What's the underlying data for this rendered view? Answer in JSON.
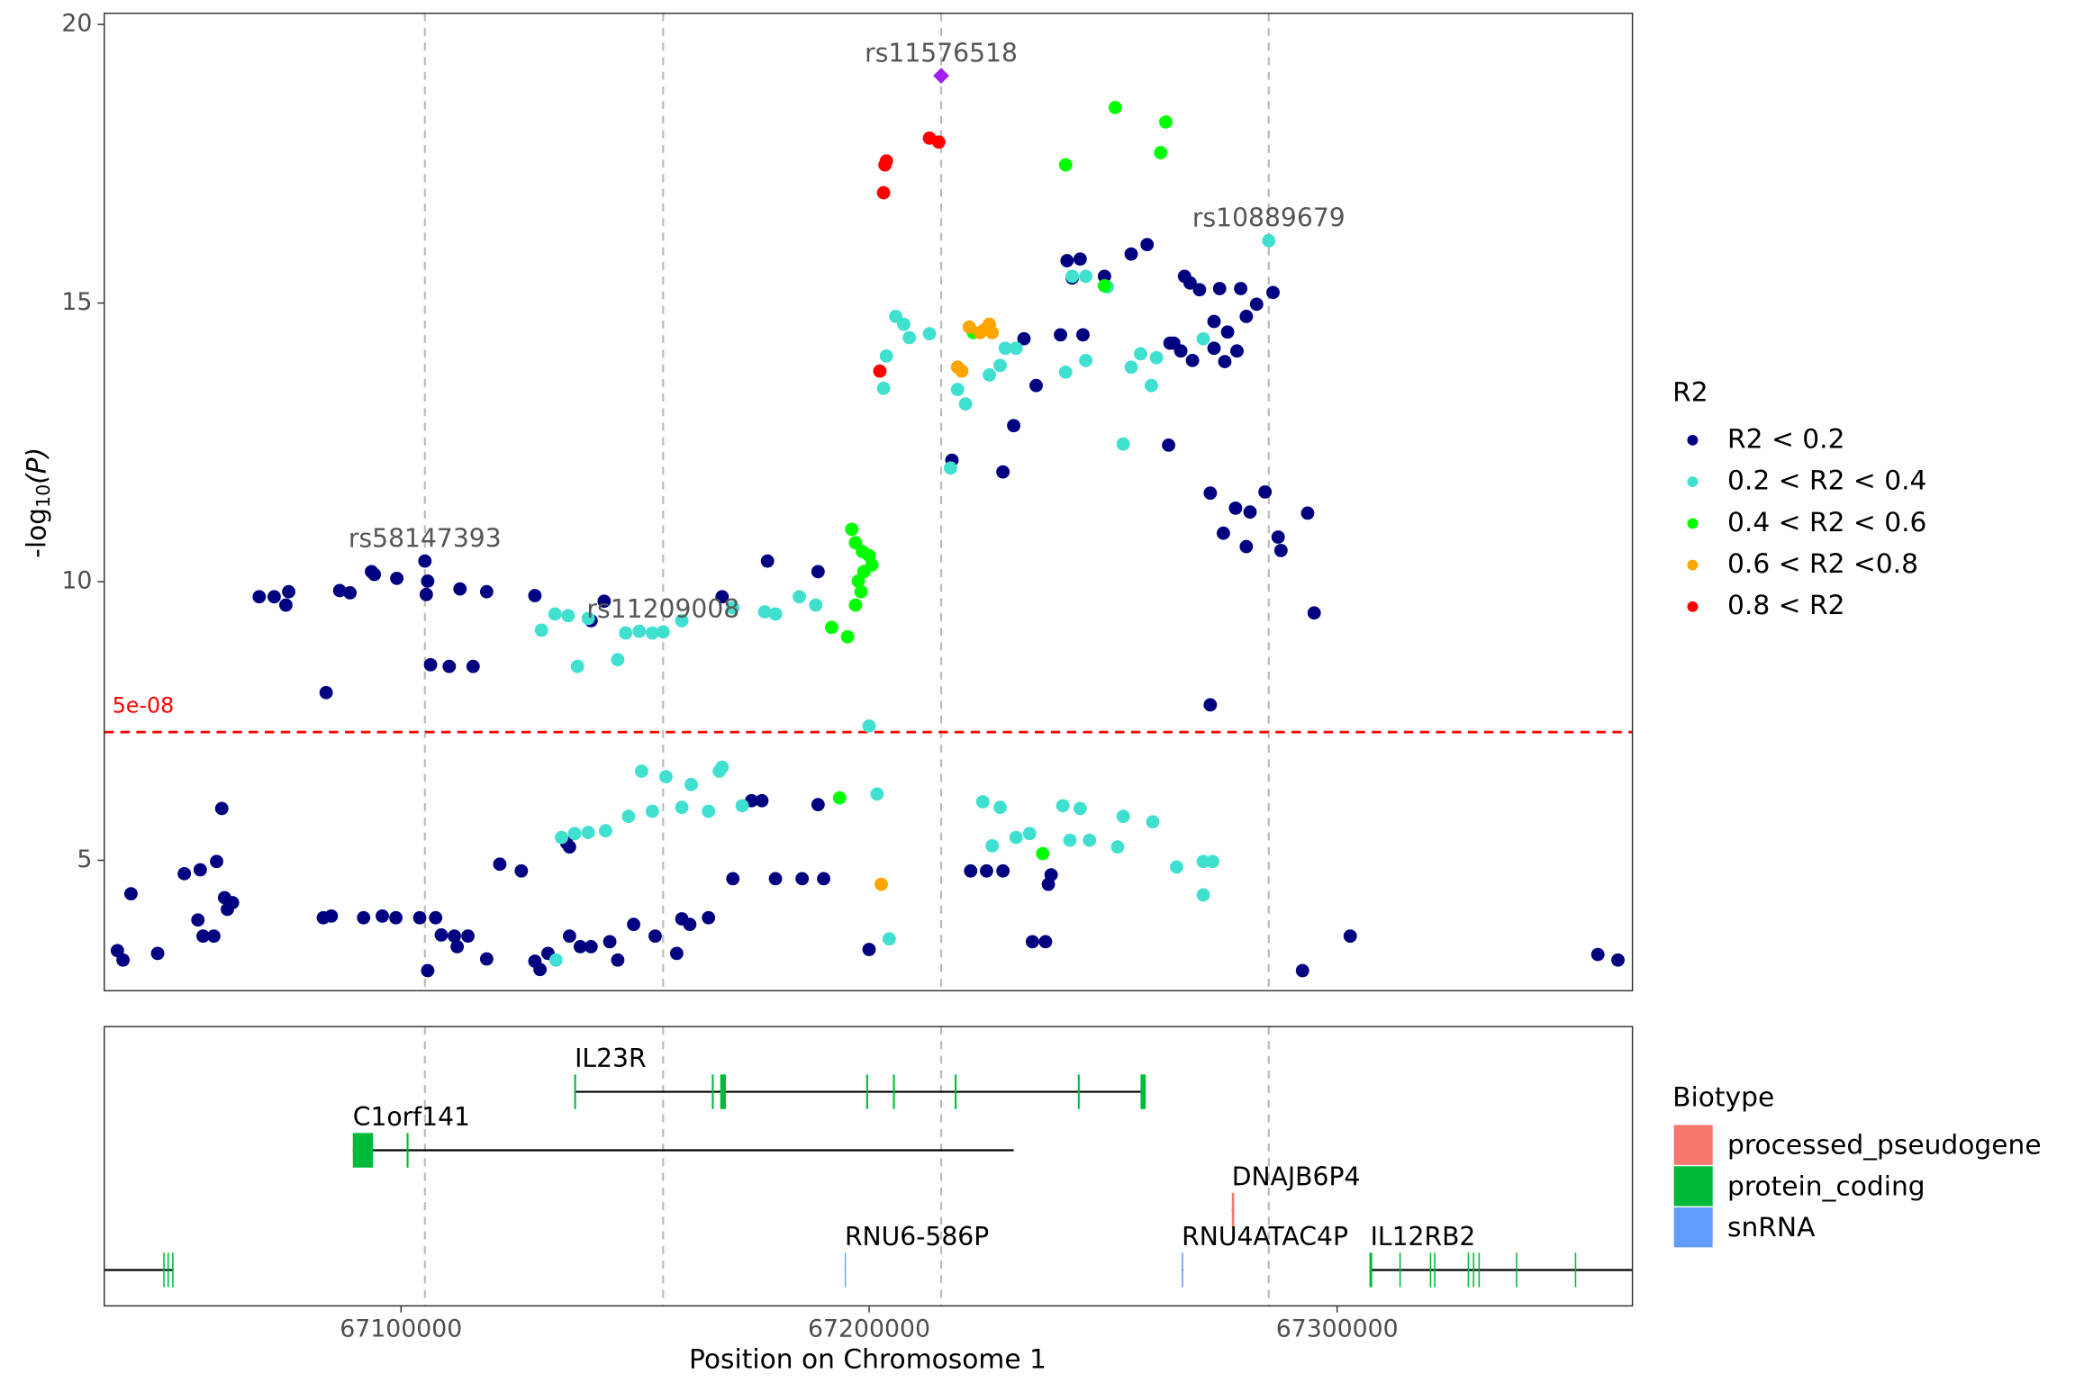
{
  "chart_data": [
    {
      "type": "scatter",
      "y_label_parts": [
        "-log",
        "10",
        "(P)"
      ],
      "xlim": [
        67036600,
        67363100
      ],
      "ylim": [
        2.66,
        20.2
      ],
      "yticks": [
        5,
        10,
        15,
        20
      ],
      "threshold": {
        "value": 7.3,
        "label": "5e-08",
        "color": "#ff0000"
      },
      "legend_title": "R2",
      "series": [
        {
          "name": "R2 < 0.2",
          "color": "#000080",
          "x": [
            67069700,
            67072900,
            67075400,
            67076000,
            67084000,
            67086900,
            67089100,
            67093700,
            67094300,
            67099100,
            67105100,
            67105700,
            67105400,
            67106300,
            67110300,
            67115400,
            67112600,
            67118300,
            67128600,
            67143400,
            67140600,
            67168600,
            67178300,
            67189100,
            67217700,
            67228600,
            67233100,
            67235700,
            67230900,
            67240900,
            67245700,
            67242300,
            67245100,
            67243400,
            67250300,
            67256000,
            67259400,
            67264000,
            67265100,
            67267400,
            67268600,
            67270600,
            67274900,
            67279400,
            67282800,
            67286300,
            67273700,
            67276600,
            67280600,
            67273700,
            67278600,
            67276000,
            67264300,
            67266600,
            67269100,
            67272900,
            67275700,
            67278300,
            67281400,
            67284600,
            67287400,
            67288000,
            67293700,
            67280600,
            67295100,
            67272900,
            67039400,
            67040600,
            67042300,
            67048000,
            67053700,
            67057100,
            67056600,
            67057700,
            67060000,
            67060600,
            67061700,
            67062300,
            67062900,
            67064000,
            67083400,
            67085100,
            67092000,
            67096000,
            67098900,
            67104000,
            67107400,
            67105700,
            67108600,
            67111400,
            67112000,
            67114300,
            67118300,
            67121100,
            67125700,
            67128600,
            67129700,
            67131400,
            67136000,
            67138300,
            67140600,
            67144600,
            67146300,
            67149700,
            67154300,
            67158900,
            67160000,
            67161700,
            67165700,
            67170900,
            67174900,
            67177100,
            67180000,
            67185700,
            67189100,
            67190300,
            67200000,
            67221700,
            67225100,
            67228600,
            67234900,
            67237700,
            67238300,
            67238900,
            67292600,
            67302800,
            67355700,
            67360000,
            67135400,
            67136000
          ],
          "values": [
            9.73,
            9.73,
            9.58,
            9.82,
            8.01,
            9.84,
            9.8,
            10.18,
            10.13,
            10.06,
            10.37,
            10.01,
            9.77,
            8.51,
            8.48,
            8.48,
            9.87,
            9.82,
            9.75,
            9.65,
            9.3,
            9.73,
            10.37,
            10.18,
            12.18,
            11.97,
            14.36,
            13.52,
            12.8,
            14.43,
            14.43,
            15.76,
            15.79,
            15.45,
            15.48,
            15.88,
            16.05,
            12.45,
            14.28,
            15.48,
            15.36,
            15.24,
            15.26,
            15.26,
            14.98,
            15.19,
            14.67,
            14.48,
            14.76,
            14.19,
            14.14,
            13.95,
            14.28,
            14.14,
            13.97,
            11.59,
            10.87,
            11.32,
            11.25,
            11.61,
            10.8,
            10.56,
            11.23,
            10.63,
            9.44,
            7.79,
            3.38,
            3.21,
            4.4,
            3.33,
            4.76,
            4.83,
            3.93,
            3.64,
            3.64,
            4.98,
            5.93,
            4.33,
            4.12,
            4.24,
            3.97,
            4.0,
            3.97,
            4.0,
            3.97,
            3.97,
            3.97,
            3.02,
            3.66,
            3.64,
            3.45,
            3.64,
            3.23,
            4.93,
            4.81,
            3.19,
            3.04,
            3.33,
            3.64,
            3.45,
            3.45,
            3.54,
            3.21,
            3.85,
            3.64,
            3.33,
            3.95,
            3.85,
            3.97,
            4.67,
            6.07,
            6.07,
            4.67,
            4.67,
            6.0,
            4.67,
            3.4,
            4.81,
            4.81,
            4.81,
            3.54,
            3.54,
            4.57,
            4.74,
            3.02,
            3.64,
            3.31,
            3.21,
            5.31,
            5.24
          ]
        },
        {
          "name": "0.2 < R2 < 0.4",
          "color": "#40e0d0",
          "x": [
            67285400,
            67205700,
            67207400,
            67208600,
            67203700,
            67203100,
            67212900,
            67218900,
            67217400,
            67220600,
            67225700,
            67229100,
            67231400,
            67228000,
            67243400,
            67246300,
            67250900,
            67242000,
            67246300,
            67254300,
            67256000,
            67258000,
            67261400,
            67260300,
            67271400,
            67132900,
            67135700,
            67130000,
            67137700,
            67140000,
            67146300,
            67148000,
            67150900,
            67153700,
            67160000,
            67170900,
            67177700,
            67180000,
            67185100,
            67188600,
            67200000,
            67134300,
            67137100,
            67140000,
            67143700,
            67148600,
            67151400,
            67153700,
            67156600,
            67160000,
            67162000,
            67168600,
            67168000,
            67165700,
            67172900,
            67201700,
            67204300,
            67224300,
            67228000,
            67226300,
            67231400,
            67234300,
            67241400,
            67245100,
            67242900,
            67247100,
            67254300,
            67253100,
            67260600,
            67265700,
            67271400,
            67273400,
            67271400,
            67133100,
            67156000
          ],
          "values": [
            16.12,
            14.76,
            14.62,
            14.38,
            14.05,
            13.47,
            14.45,
            13.45,
            12.04,
            13.19,
            13.71,
            14.19,
            14.19,
            13.88,
            15.48,
            15.48,
            15.29,
            13.76,
            13.97,
            12.47,
            13.85,
            14.09,
            14.02,
            13.52,
            14.36,
            9.42,
            9.39,
            9.13,
            8.48,
            9.34,
            8.6,
            9.08,
            9.11,
            9.08,
            9.3,
            9.53,
            9.46,
            9.42,
            9.73,
            9.58,
            7.41,
            5.41,
            5.48,
            5.5,
            5.53,
            5.79,
            6.6,
            5.88,
            6.5,
            5.95,
            6.36,
            6.67,
            6.6,
            5.88,
            5.98,
            6.19,
            3.59,
            6.05,
            5.95,
            5.26,
            5.41,
            5.48,
            5.98,
            5.93,
            5.36,
            5.36,
            5.79,
            5.24,
            5.69,
            4.88,
            4.98,
            4.98,
            4.38,
            3.21,
            9.1
          ]
        },
        {
          "name": "0.4 < R2 < 0.6",
          "color": "#00ff00",
          "x": [
            67252600,
            67263400,
            67262300,
            67242000,
            67196300,
            67197100,
            67198600,
            67200000,
            67200600,
            67198900,
            67197700,
            67198300,
            67197100,
            67192000,
            67195400,
            67193700,
            67237100,
            67222300,
            67250300
          ],
          "values": [
            18.51,
            18.25,
            17.7,
            17.48,
            10.94,
            10.7,
            10.54,
            10.47,
            10.3,
            10.18,
            10.01,
            9.82,
            9.58,
            9.18,
            9.01,
            6.12,
            5.12,
            14.47,
            15.31
          ]
        },
        {
          "name": "0.6 < R2 <0.8",
          "color": "#ffa500",
          "x": [
            67221400,
            67225700,
            67226300,
            67218900,
            67219800,
            67223700,
            67202600,
            67224600
          ],
          "values": [
            14.57,
            14.62,
            14.47,
            13.85,
            13.78,
            14.47,
            4.57,
            14.52
          ]
        },
        {
          "name": "0.8 < R2",
          "color": "#ff0000",
          "x": [
            67212900,
            67214900,
            67203700,
            67203400,
            67203100,
            67202300
          ],
          "values": [
            17.96,
            17.89,
            17.55,
            17.48,
            16.98,
            13.78
          ]
        }
      ],
      "lead_snp": {
        "x": 67215400,
        "value": 19.08,
        "color": "#a020f0"
      },
      "annotations": [
        {
          "label": "rs11576518",
          "x": 67215400,
          "value": 19.08
        },
        {
          "label": "rs58147393",
          "x": 67105100,
          "value": 10.37
        },
        {
          "label": "rs11209008",
          "x": 67156000,
          "value": 9.1
        },
        {
          "label": "rs10889679",
          "x": 67285400,
          "value": 16.12
        }
      ]
    },
    {
      "type": "gene_track",
      "x_label": "Position on Chromosome 1",
      "xlim": [
        67036600,
        67363100
      ],
      "xticks": [
        67100000,
        67200000,
        67300000
      ],
      "legend_title": "Biotype",
      "biotypes": [
        {
          "name": "processed_pseudogene",
          "color": "#f8766d"
        },
        {
          "name": "protein_coding",
          "color": "#00ba38"
        },
        {
          "name": "snRNA",
          "color": "#619cff"
        }
      ],
      "genes": [
        {
          "name": "IL23R",
          "biotype": 1,
          "start": 67137100,
          "end": 67258900,
          "exons": [
            [
              67137000,
              67137400
            ],
            [
              67166400,
              67166800
            ],
            [
              67168200,
              67169400
            ],
            [
              67199400,
              67199800
            ],
            [
              67205100,
              67205500
            ],
            [
              67218300,
              67218700
            ],
            [
              67244600,
              67245000
            ],
            [
              67258000,
              67259100
            ]
          ]
        },
        {
          "name": "C1orf141",
          "biotype": 1,
          "start": 67089700,
          "end": 67230900,
          "exons": [
            [
              67089700,
              67094000
            ],
            [
              67101200,
              67101600
            ]
          ]
        },
        {
          "name": "DNAJB6P4",
          "biotype": 0,
          "start": 67277500,
          "end": 67278000,
          "exons": [
            [
              67277500,
              67278000
            ]
          ]
        },
        {
          "name": "RNU6-586P",
          "biotype": 2,
          "start": 67194800,
          "end": 67195000,
          "exons": [
            [
              67194800,
              67195000
            ]
          ]
        },
        {
          "name": "RNU4ATAC4P",
          "biotype": 2,
          "start": 67266800,
          "end": 67267100,
          "exons": [
            [
              67266800,
              67267100
            ]
          ]
        },
        {
          "name": "IL12RB2",
          "biotype": 1,
          "start": 67307100,
          "end": 67400000,
          "exons": [
            [
              67306900,
              67307500
            ],
            [
              67313300,
              67313600
            ],
            [
              67319800,
              67320100
            ],
            [
              67320700,
              67321000
            ],
            [
              67327900,
              67328200
            ],
            [
              67329000,
              67329300
            ],
            [
              67330200,
              67330500
            ],
            [
              67338200,
              67338500
            ],
            [
              67350800,
              67351100
            ]
          ]
        },
        {
          "biotype": 1,
          "start": 67020000,
          "end": 67051400,
          "exons": [
            [
              67049200,
              67049500
            ],
            [
              67050100,
              67050400
            ],
            [
              67051100,
              67051400
            ]
          ]
        }
      ]
    }
  ]
}
